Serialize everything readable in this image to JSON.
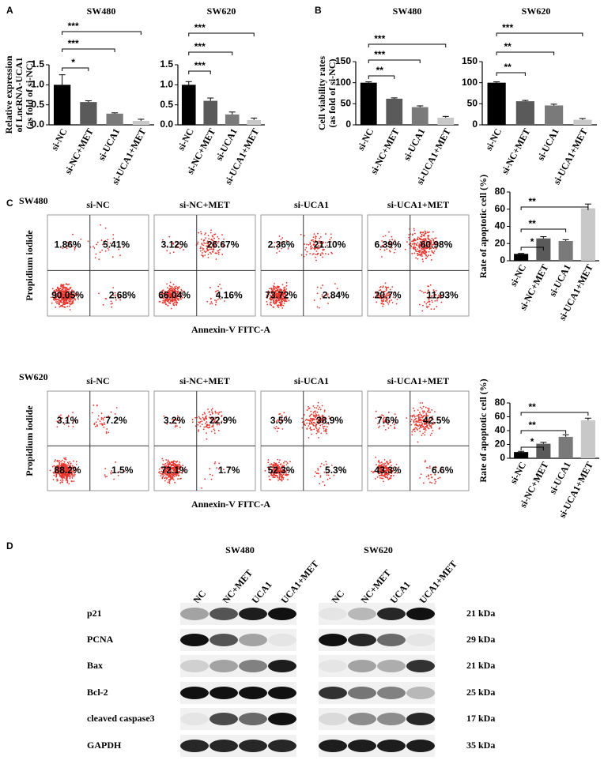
{
  "panels": [
    "A",
    "B",
    "C",
    "D"
  ],
  "chart_data": [
    {
      "type": "bar",
      "title": "SW480",
      "ylabel": [
        "Relative expression",
        "of LncRNA-UCA1",
        "(as fold of si-NC)"
      ],
      "categories": [
        "si-NC",
        "si-NC+MET",
        "si-UCA1",
        "si-UCA1+MET"
      ],
      "values": [
        1.0,
        0.57,
        0.28,
        0.1
      ],
      "errors": [
        0.25,
        0.03,
        0.02,
        0.04
      ],
      "colors": [
        "#000000",
        "#5a5a5a",
        "#7a7a7a",
        "#c8c8c8"
      ],
      "ylim": [
        0,
        1.5
      ],
      "yticks": [
        {
          "value": 0,
          "label": "0.0"
        },
        0.5,
        {
          "value": 1,
          "label": "1.0"
        },
        1.5
      ],
      "annotations": [
        "*",
        "***",
        "***"
      ]
    },
    {
      "type": "bar",
      "title": "SW620",
      "categories": [
        "si-NC",
        "si-NC+MET",
        "si-UCA1",
        "si-UCA1+MET"
      ],
      "values": [
        1.0,
        0.6,
        0.26,
        0.12
      ],
      "errors": [
        0.08,
        0.07,
        0.06,
        0.05
      ],
      "colors": [
        "#000000",
        "#5a5a5a",
        "#7a7a7a",
        "#c8c8c8"
      ],
      "ylim": [
        0,
        1.5
      ],
      "yticks": [
        {
          "value": 0,
          "label": "0.0"
        },
        0.5,
        {
          "value": 1,
          "label": "1.0"
        },
        1.5
      ],
      "annotations": [
        "***",
        "***",
        "***"
      ]
    },
    {
      "type": "bar",
      "title": "SW480",
      "ylabel": [
        "Cell viability rates",
        "(as fold of si-NC)"
      ],
      "categories": [
        "si-NC",
        "si-NC+MET",
        "si-UCA1",
        "si-UCA1+MET"
      ],
      "values": [
        100,
        62,
        42,
        17
      ],
      "errors": [
        2,
        2,
        3,
        3
      ],
      "colors": [
        "#000000",
        "#5a5a5a",
        "#7a7a7a",
        "#c8c8c8"
      ],
      "ylim": [
        0,
        150
      ],
      "yticks": [
        0,
        50,
        100,
        150
      ],
      "annotations": [
        "**",
        "***",
        "***"
      ]
    },
    {
      "type": "bar",
      "title": "SW620",
      "categories": [
        "si-NC",
        "si-NC+MET",
        "si-UCA1",
        "si-UCA1+MET"
      ],
      "values": [
        100,
        56,
        46,
        12
      ],
      "errors": [
        2,
        2,
        3,
        3
      ],
      "colors": [
        "#000000",
        "#5a5a5a",
        "#7a7a7a",
        "#c8c8c8"
      ],
      "ylim": [
        0,
        150
      ],
      "yticks": [
        0,
        50,
        100,
        150
      ],
      "annotations": [
        "**",
        "**",
        "***"
      ]
    },
    {
      "type": "bar",
      "ylabel": [
        "Rate of apoptotic cell  (%)"
      ],
      "categories": [
        "si-NC",
        "si-NC+MET",
        "si-UCA1",
        "si-UCA1+MET"
      ],
      "values": [
        8,
        26,
        23,
        61
      ],
      "errors": [
        0.5,
        2,
        1.5,
        5
      ],
      "colors": [
        "#000000",
        "#5a5a5a",
        "#7a7a7a",
        "#c8c8c8"
      ],
      "ylim": [
        0,
        80
      ],
      "yticks": [
        0,
        20,
        40,
        60,
        80
      ],
      "annotations": [
        "*",
        "**",
        "**"
      ]
    },
    {
      "type": "bar",
      "ylabel": [
        "Rate of apoptotic cell  (%)"
      ],
      "categories": [
        "si-NC",
        "si-NC+MET",
        "si-UCA1",
        "si-UCA1+MET"
      ],
      "values": [
        9,
        21,
        31,
        55
      ],
      "errors": [
        1,
        2,
        3,
        3
      ],
      "colors": [
        "#000000",
        "#5a5a5a",
        "#7a7a7a",
        "#c8c8c8"
      ],
      "ylim": [
        0,
        80
      ],
      "yticks": [
        0,
        20,
        40,
        60,
        80
      ],
      "annotations": [
        "*",
        "**",
        "**"
      ]
    }
  ],
  "flow": [
    {
      "cell_line": "SW480",
      "ylabel": "Propidium iodide",
      "xlabel": "Annexin-V FITC-A",
      "plots": [
        {
          "title": "si-NC",
          "quadrants": [
            "1.86%",
            "5.41%",
            "90.05%",
            "2.68%"
          ]
        },
        {
          "title": "si-NC+MET",
          "quadrants": [
            "3.12%",
            "26.67%",
            "66.04%",
            "4.16%"
          ]
        },
        {
          "title": "si-UCA1",
          "quadrants": [
            "2.36%",
            "21.10%",
            "73.72%",
            "2.84%"
          ]
        },
        {
          "title": "si-UCA1+MET",
          "quadrants": [
            "6.39%",
            "60.98%",
            "20.7%",
            "11.93%"
          ]
        }
      ]
    },
    {
      "cell_line": "SW620",
      "ylabel": "Propidium iodide",
      "xlabel": "Annexin-V FITC-A",
      "plots": [
        {
          "title": "si-NC",
          "quadrants": [
            "3.1%",
            "7.2%",
            "88.2%",
            "1.5%"
          ]
        },
        {
          "title": "si-NC+MET",
          "quadrants": [
            "3.2%",
            "22.9%",
            "72.1%",
            "1.7%"
          ]
        },
        {
          "title": "si-UCA1",
          "quadrants": [
            "3.5%",
            "38.9%",
            "52.3%",
            "5.3%"
          ]
        },
        {
          "title": "si-UCA1+MET",
          "quadrants": [
            "7.6%",
            "42.5%",
            "43.3%",
            "6.6%"
          ]
        }
      ]
    }
  ],
  "blot": {
    "cell_lines": [
      "SW480",
      "SW620"
    ],
    "lanes": [
      "si-NC",
      "si-NC+MET",
      "si-UCA1",
      "si-UCA1+MET"
    ],
    "rows": [
      {
        "protein": "p21",
        "size": "21 kDa"
      },
      {
        "protein": "PCNA",
        "size": "29 kDa"
      },
      {
        "protein": "Bax",
        "size": "21 kDa"
      },
      {
        "protein": "Bcl-2",
        "size": "25 kDa"
      },
      {
        "protein": "cleaved caspase3",
        "size": "17 kDa"
      },
      {
        "protein": "GAPDH",
        "size": "35 kDa"
      }
    ]
  }
}
